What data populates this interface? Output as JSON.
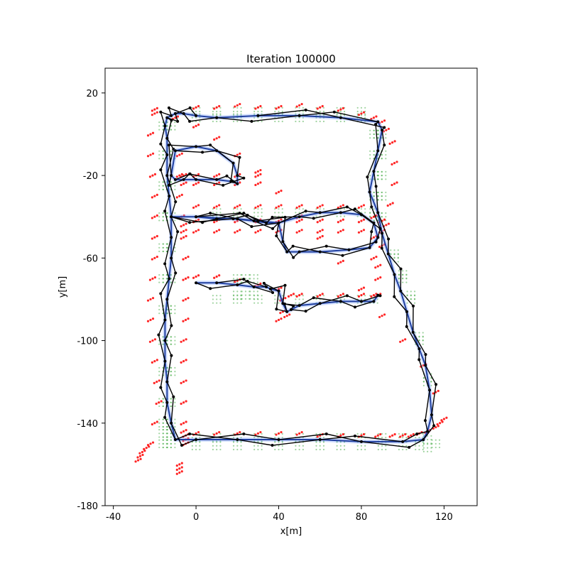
{
  "chart_data": {
    "type": "scatter",
    "title": "Iteration 100000",
    "xlabel": "x[m]",
    "ylabel": "y[m]",
    "xlim": [
      -44,
      136
    ],
    "ylim": [
      -180,
      32
    ],
    "xticks": [
      -40,
      0,
      40,
      80,
      120
    ],
    "yticks": [
      20,
      -20,
      -60,
      -100,
      -140,
      -180
    ],
    "grid": false,
    "legend": "none",
    "colors": {
      "occupied": "#ff0000",
      "free": "#2ca02c",
      "trajectory": "#1f3f9f",
      "trajectory_glow": "#7aa0ff",
      "graph": "#000000"
    },
    "series": [
      {
        "role": "trajectory",
        "x": [
          10,
          30,
          50,
          70,
          88,
          90,
          88,
          86,
          84,
          88,
          90,
          93,
          96,
          99,
          102,
          105,
          108,
          111,
          113,
          114,
          112,
          110,
          100,
          80,
          60,
          40,
          20,
          0,
          -10,
          -12,
          -14,
          -14,
          -15,
          -15,
          -15,
          -14,
          -13,
          -12,
          -12,
          -12,
          -13,
          -14,
          -14,
          -14,
          -15,
          -14,
          -12,
          -10,
          -6,
          0,
          10
        ],
        "y": [
          8,
          9,
          9,
          8,
          6,
          2,
          -8,
          -18,
          -28,
          -38,
          -48,
          -58,
          -68,
          -76,
          -86,
          -96,
          -104,
          -112,
          -124,
          -136,
          -144,
          -148,
          -149,
          -149,
          -148,
          -148,
          -148,
          -148,
          -148,
          -140,
          -130,
          -120,
          -110,
          -100,
          -90,
          -80,
          -70,
          -60,
          -50,
          -40,
          -30,
          -20,
          -10,
          -2,
          4,
          8,
          9,
          10,
          10,
          9,
          8
        ]
      },
      {
        "role": "inner-loop-1",
        "x": [
          -12,
          0,
          18,
          28,
          34,
          40,
          50,
          60,
          70,
          80,
          86,
          88,
          84,
          74,
          60,
          50,
          44,
          42,
          40,
          30,
          20,
          10,
          0,
          -12
        ],
        "y": [
          -40,
          -40,
          -41,
          -42,
          -43,
          -43,
          -40,
          -38,
          -38,
          -39,
          -43,
          -50,
          -55,
          -56,
          -57,
          -57,
          -57,
          -52,
          -43,
          -42,
          -41,
          -41,
          -40,
          -40
        ]
      },
      {
        "role": "inner-loop-2",
        "x": [
          0,
          10,
          20,
          28,
          34,
          36,
          40,
          42,
          44,
          46,
          50,
          60,
          70,
          80,
          86,
          88
        ],
        "y": [
          -72,
          -72,
          -73,
          -74,
          -74,
          -75,
          -76,
          -82,
          -86,
          -85,
          -83,
          -82,
          -81,
          -81,
          -81,
          -78
        ]
      },
      {
        "role": "inner-loop-3",
        "x": [
          -12,
          -10,
          -6,
          0,
          10,
          18,
          20,
          20,
          18,
          10,
          0,
          -10,
          -12
        ],
        "y": [
          -20,
          -22,
          -22,
          -22,
          -22,
          -23,
          -24,
          -20,
          -14,
          -8,
          -6,
          -8,
          -20
        ]
      },
      {
        "role": "occupied",
        "x": [
          -20,
          -22,
          -22,
          -21,
          -20,
          -20,
          -20,
          -20,
          -21,
          -22,
          -22,
          -21,
          -20,
          -19,
          -18,
          -20,
          -22,
          -24,
          -26,
          -27,
          -28,
          -8,
          -8,
          -8,
          -7,
          -6,
          -5,
          -5,
          -5,
          -5,
          -6,
          -6,
          -6,
          -6,
          -6,
          -6,
          -5,
          -5,
          -5,
          -8,
          -8,
          -8,
          0,
          10,
          20,
          30,
          40,
          50,
          60,
          70,
          80,
          88,
          95,
          100,
          104,
          108,
          112,
          116,
          118,
          120,
          116,
          110,
          100,
          90,
          80,
          70,
          60,
          50,
          40,
          30,
          20,
          10,
          0,
          -10,
          -20,
          0,
          10,
          20,
          30,
          40,
          50,
          60,
          70,
          80,
          86,
          90,
          92,
          95,
          96,
          96,
          94,
          92,
          90,
          88,
          -6,
          0,
          10,
          20,
          30,
          40,
          50,
          60,
          70,
          80,
          90,
          -6,
          0,
          10,
          20,
          30,
          40,
          50,
          60,
          70,
          80,
          90,
          -6,
          0,
          10,
          20,
          30,
          -6,
          0,
          10,
          20,
          30,
          0,
          10,
          20,
          30,
          40,
          42,
          42,
          40,
          44,
          46,
          50,
          60,
          70,
          80,
          86,
          88,
          88,
          86,
          86,
          86,
          80,
          70,
          60,
          50,
          40,
          30,
          20,
          10,
          0
        ],
        "y": [
          10,
          0,
          -10,
          -20,
          -30,
          -40,
          -50,
          -60,
          -70,
          -80,
          -90,
          -100,
          -110,
          -120,
          -130,
          -140,
          -150,
          -152,
          -154,
          -156,
          -158,
          -10,
          -20,
          -30,
          -40,
          -50,
          -60,
          -70,
          -80,
          -90,
          -100,
          -110,
          -120,
          -130,
          -140,
          -144,
          -146,
          -148,
          -150,
          -160,
          -162,
          -164,
          -145,
          -145,
          -145,
          -145,
          -145,
          -145,
          -146,
          -146,
          -146,
          -146,
          -146,
          -146,
          -146,
          -145,
          -144,
          -142,
          -140,
          -138,
          -125,
          -112,
          -100,
          -88,
          -75,
          -62,
          -50,
          -40,
          -28,
          -18,
          -10,
          -2,
          4,
          8,
          12,
          13,
          13,
          14,
          13,
          13,
          14,
          13,
          12,
          10,
          8,
          6,
          2,
          -4,
          -14,
          -24,
          -34,
          -44,
          -54,
          -64,
          -44,
          -42,
          -42,
          -42,
          -42,
          -42,
          -42,
          -42,
          -42,
          -42,
          -42,
          -47,
          -47,
          -47,
          -47,
          -47,
          -47,
          -47,
          -47,
          -47,
          -47,
          -47,
          -24,
          -24,
          -24,
          -24,
          -24,
          -20,
          -20,
          -20,
          -20,
          -20,
          -69,
          -69,
          -71,
          -73,
          -75,
          -80,
          -86,
          -90,
          -88,
          -78,
          -78,
          -78,
          -78,
          -78,
          -78,
          -78,
          -70,
          -60,
          -50,
          -40,
          -35,
          -35,
          -35,
          -35,
          -35,
          -35,
          -35,
          -35,
          -35
        ]
      },
      {
        "role": "free",
        "x": [
          -16,
          -14,
          -12,
          -16,
          -14,
          -12,
          -16,
          -14,
          -12,
          -16,
          -14,
          -12,
          -16,
          -14,
          -12,
          -16,
          -14,
          -12,
          -16,
          -14,
          -12,
          -16,
          -14,
          -12,
          -16,
          -14,
          -12,
          -16,
          -14,
          -12,
          -16,
          -14,
          -12,
          -16,
          -14,
          -12,
          -16,
          -14,
          -12,
          0,
          10,
          20,
          30,
          40,
          50,
          60,
          70,
          80,
          90,
          100,
          108,
          112,
          116,
          0,
          10,
          20,
          30,
          40,
          50,
          60,
          70,
          80,
          90,
          100,
          108,
          112,
          86,
          88,
          90,
          86,
          88,
          90,
          86,
          88,
          90,
          86,
          88,
          90,
          86,
          88,
          90,
          96,
          100,
          104,
          108,
          112,
          96,
          100,
          104,
          108,
          112,
          0,
          10,
          20,
          30,
          40,
          50,
          60,
          70,
          80,
          0,
          10,
          20,
          30,
          40,
          50,
          60,
          70,
          80,
          10,
          20,
          30,
          40,
          50,
          60,
          70,
          80,
          86,
          10,
          20,
          30,
          40,
          50,
          60,
          70,
          80,
          86,
          20,
          24,
          28,
          20,
          24,
          28
        ],
        "y": [
          4,
          4,
          4,
          -10,
          -10,
          -10,
          -25,
          -25,
          -25,
          -40,
          -40,
          -40,
          -55,
          -55,
          -55,
          -70,
          -70,
          -70,
          -85,
          -85,
          -85,
          -100,
          -100,
          -100,
          -115,
          -115,
          -115,
          -130,
          -130,
          -130,
          -140,
          -140,
          -140,
          -145,
          -145,
          -145,
          -150,
          -150,
          -150,
          -147,
          -147,
          -147,
          -147,
          -147,
          -147,
          -147,
          -147,
          -147,
          -147,
          -147,
          -147,
          -148,
          -150,
          -151,
          -151,
          -151,
          -151,
          -151,
          -151,
          -151,
          -151,
          -151,
          -151,
          -151,
          -151,
          -152,
          0,
          0,
          0,
          -10,
          -10,
          -10,
          -20,
          -20,
          -20,
          -30,
          -30,
          -30,
          -40,
          -40,
          -40,
          -60,
          -70,
          -80,
          -100,
          -120,
          -58,
          -68,
          -78,
          -98,
          -118,
          8,
          8,
          8,
          8,
          8,
          8,
          8,
          8,
          8,
          11,
          11,
          11,
          11,
          11,
          11,
          11,
          11,
          11,
          -38,
          -38,
          -38,
          -38,
          -38,
          -38,
          -38,
          -38,
          -38,
          -80,
          -80,
          -80,
          -80,
          -80,
          -80,
          -80,
          -80,
          -80,
          -70,
          -70,
          -70,
          -78,
          -78,
          -78
        ]
      }
    ]
  }
}
